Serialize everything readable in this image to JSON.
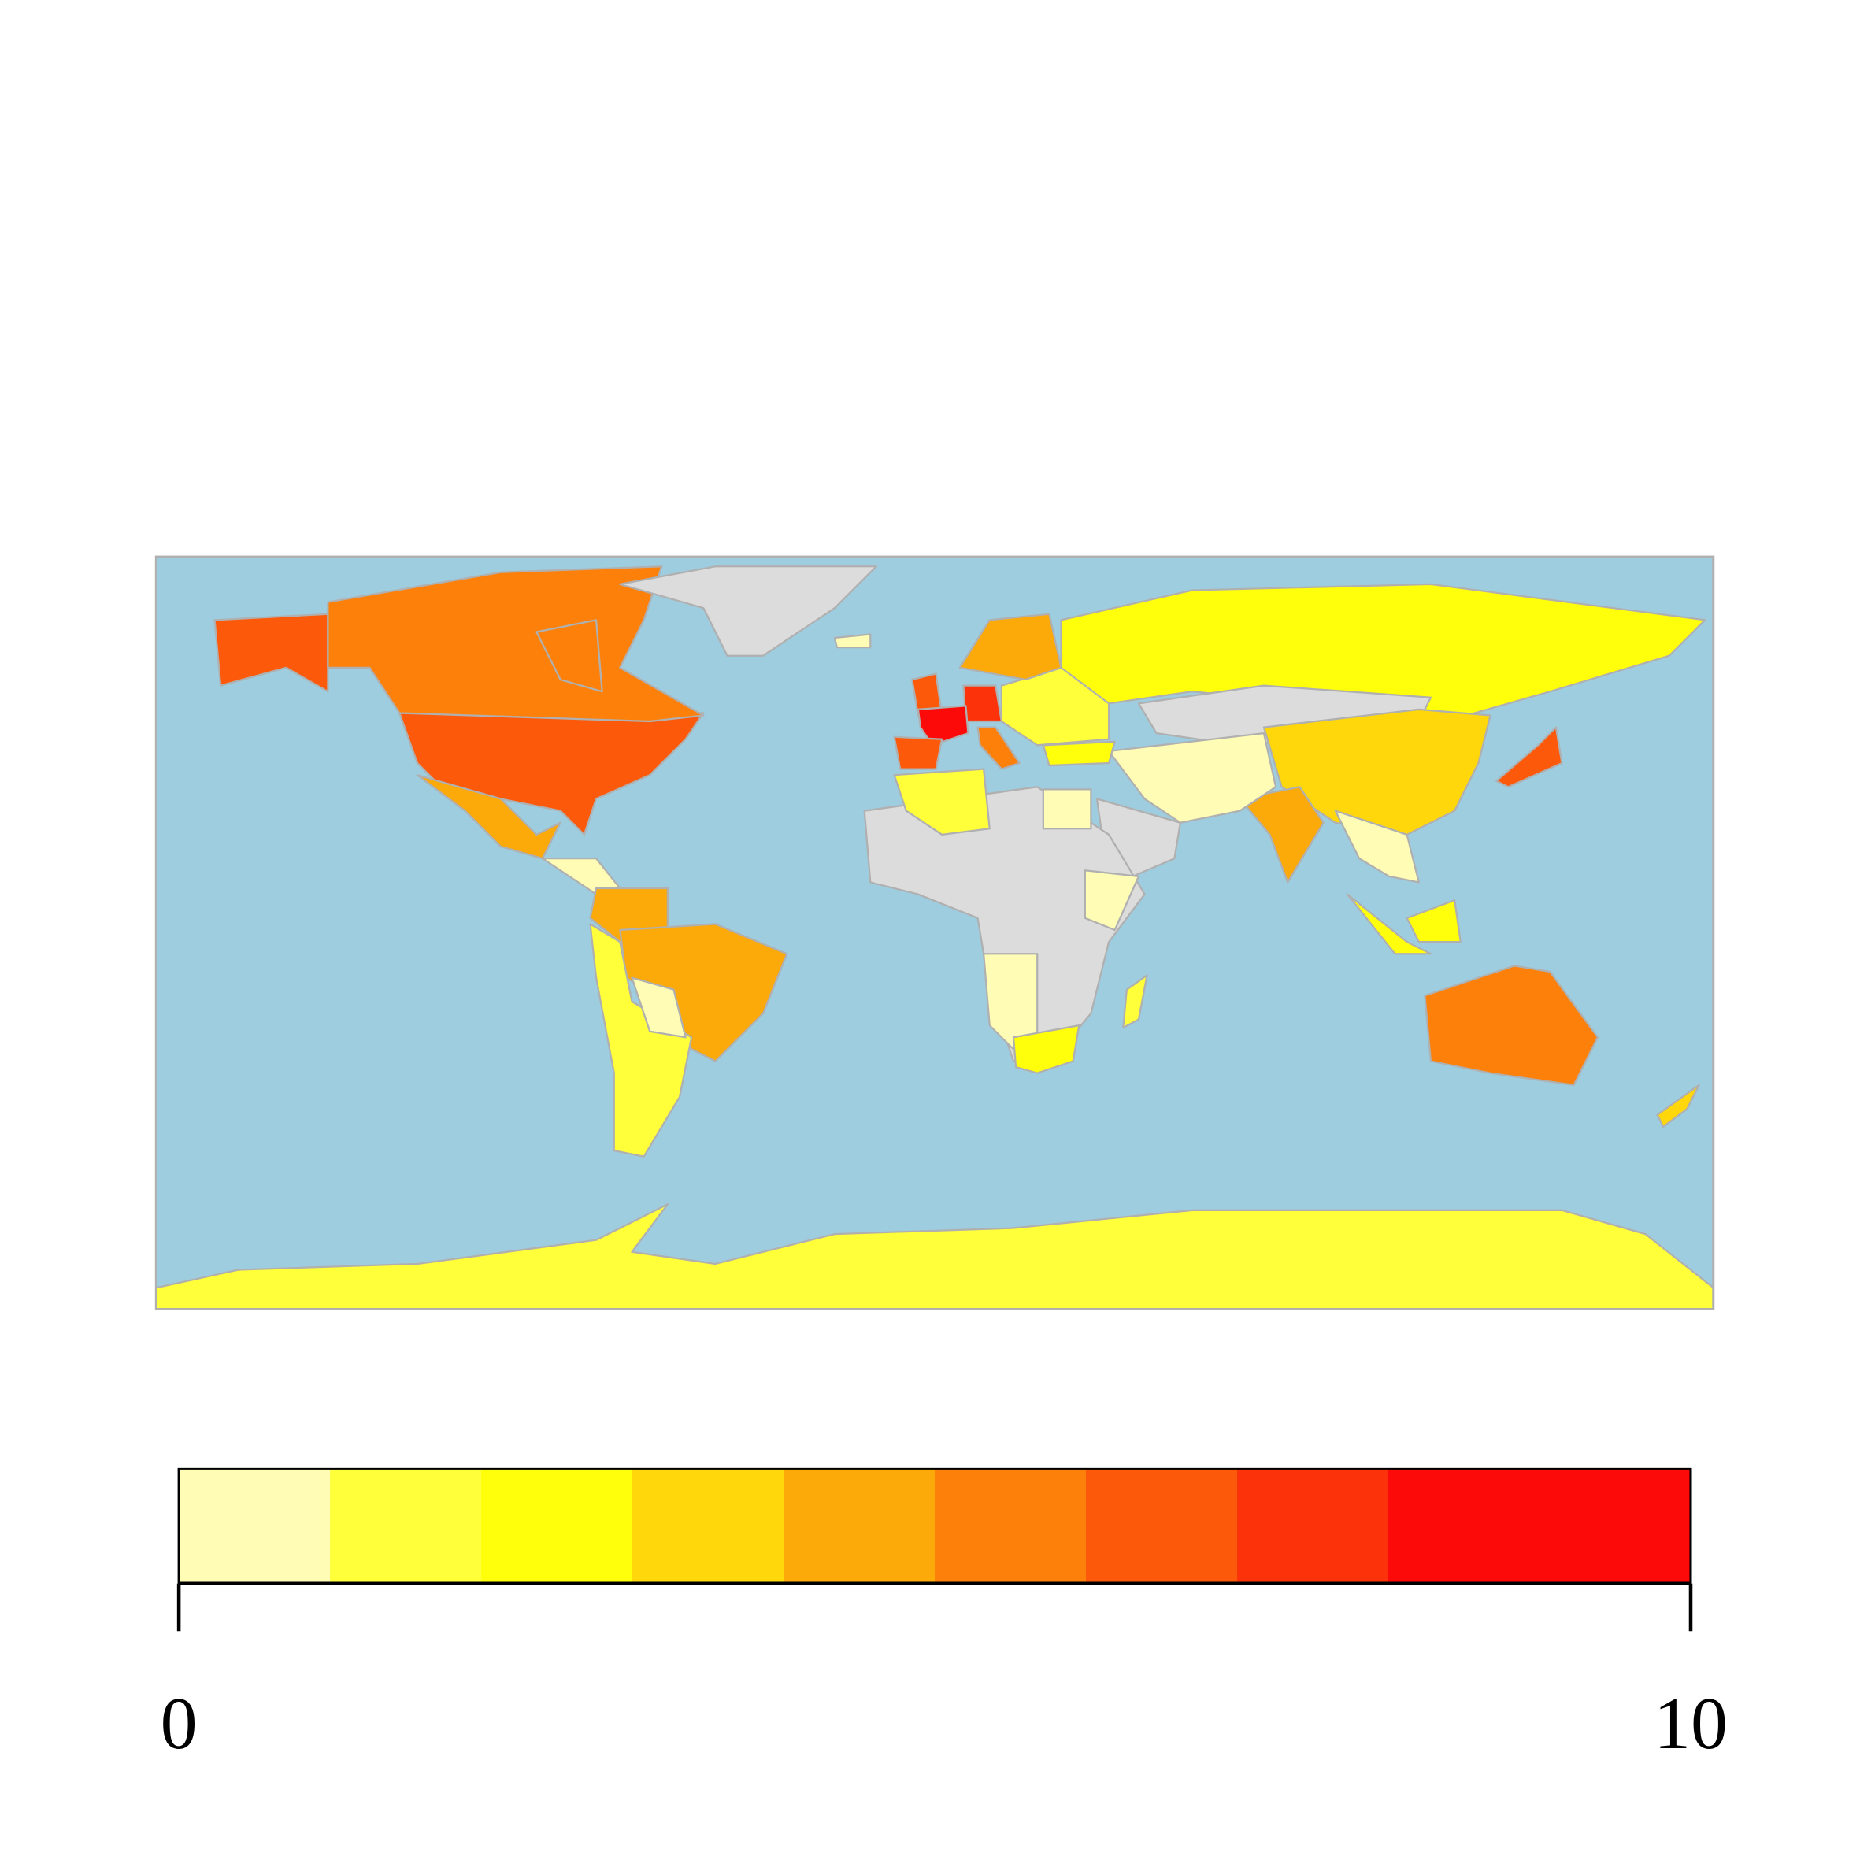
{
  "chart_data": {
    "type": "choropleth",
    "values": [
      6.5,
      6.5,
      5.5,
      null,
      4.5,
      0.5,
      4.5,
      4.5,
      1.5,
      0.5,
      2.5,
      null,
      3.5,
      4.5,
      0.5,
      null,
      2.5,
      null,
      1.5,
      0.5,
      0.5,
      0.5,
      2.5,
      1.5,
      6.5,
      7.5,
      9.5,
      6.5,
      5.5,
      1.5,
      4.5,
      0.5,
      6.5,
      0.5,
      2.5,
      5.5,
      3.5,
      1.5
    ],
    "na_color": "#DCDCDC",
    "ocean_color": "#9ECDE0",
    "border_color": "#B0B0B0",
    "colorbar": {
      "lim": [
        0,
        10
      ],
      "ticks": [
        0,
        10
      ],
      "colors": [
        "#FFFDB5",
        "#FFFF3A",
        "#FFFF0C",
        "#FFD70A",
        "#FCA90A",
        "#FC800A",
        "#FC590A",
        "#FC330A",
        "#FC0A0A",
        "#FC0A0A"
      ]
    }
  }
}
